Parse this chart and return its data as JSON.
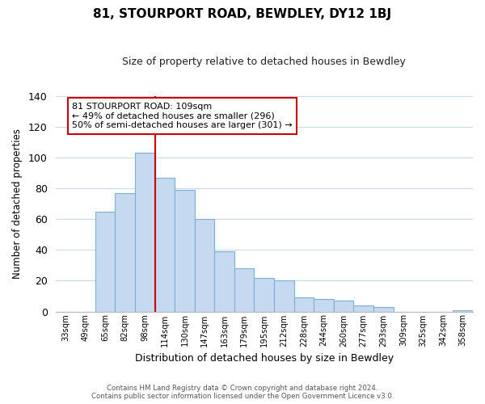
{
  "title": "81, STOURPORT ROAD, BEWDLEY, DY12 1BJ",
  "subtitle": "Size of property relative to detached houses in Bewdley",
  "xlabel": "Distribution of detached houses by size in Bewdley",
  "ylabel": "Number of detached properties",
  "bar_labels": [
    "33sqm",
    "49sqm",
    "65sqm",
    "82sqm",
    "98sqm",
    "114sqm",
    "130sqm",
    "147sqm",
    "163sqm",
    "179sqm",
    "195sqm",
    "212sqm",
    "228sqm",
    "244sqm",
    "260sqm",
    "277sqm",
    "293sqm",
    "309sqm",
    "325sqm",
    "342sqm",
    "358sqm"
  ],
  "bar_values": [
    0,
    0,
    65,
    77,
    103,
    87,
    79,
    60,
    39,
    28,
    22,
    20,
    9,
    8,
    7,
    4,
    3,
    0,
    0,
    0,
    1
  ],
  "bar_color": "#c5d9f0",
  "bar_edge_color": "#7bafd4",
  "vline_x_index": 5,
  "vline_color": "#cc0000",
  "ylim": [
    0,
    140
  ],
  "yticks": [
    0,
    20,
    40,
    60,
    80,
    100,
    120,
    140
  ],
  "annotation_text": "81 STOURPORT ROAD: 109sqm\n← 49% of detached houses are smaller (296)\n50% of semi-detached houses are larger (301) →",
  "annotation_box_edge": "#cc0000",
  "footer_line1": "Contains HM Land Registry data © Crown copyright and database right 2024.",
  "footer_line2": "Contains public sector information licensed under the Open Government Licence v3.0.",
  "bg_color": "#ffffff",
  "grid_color": "#c8daf0"
}
